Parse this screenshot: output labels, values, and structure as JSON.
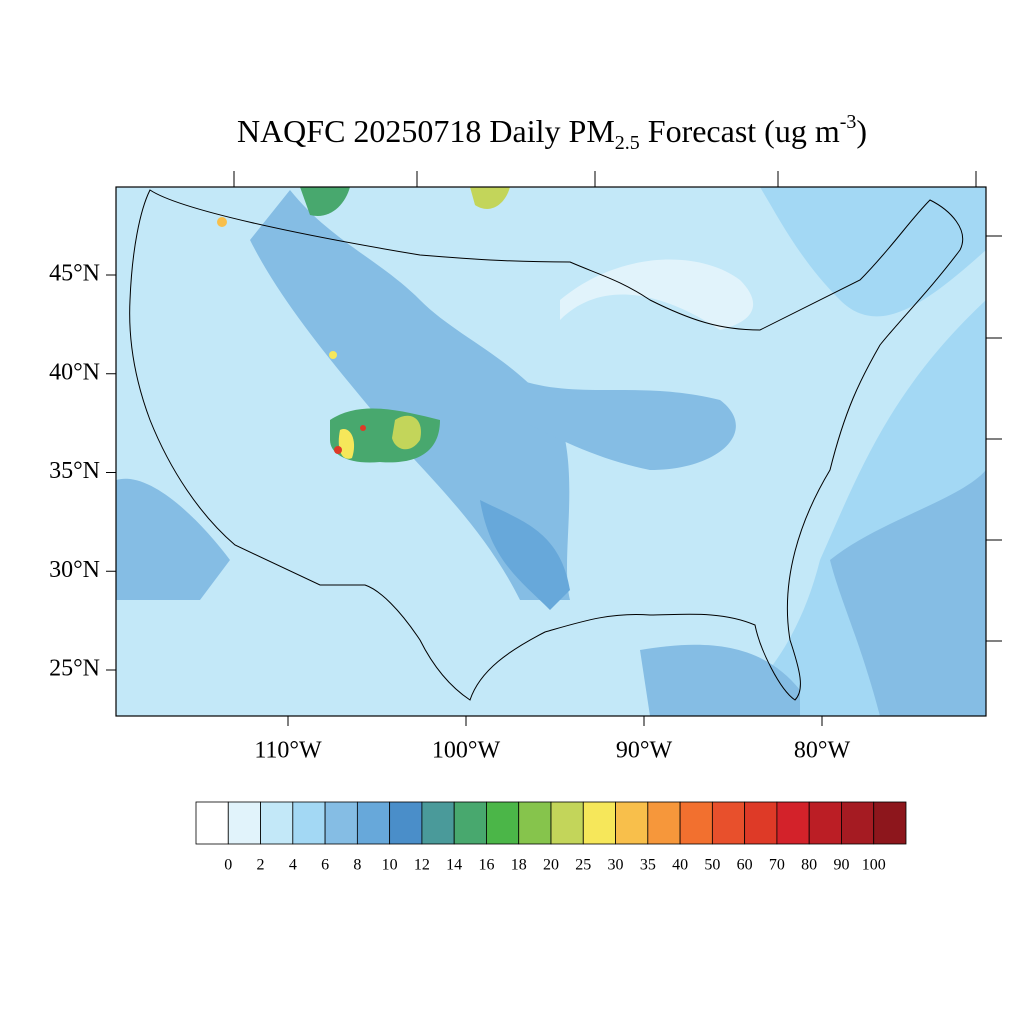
{
  "title": {
    "main": "NAQFC 20250718 Daily PM",
    "subscript": "2.5",
    "middle": " Forecast (ug m",
    "superscript": "-3",
    "end": ")"
  },
  "map": {
    "lat_ticks": [
      {
        "value": 45,
        "label": "45°N"
      },
      {
        "value": 40,
        "label": "40°N"
      },
      {
        "value": 35,
        "label": "35°N"
      },
      {
        "value": 30,
        "label": "30°N"
      },
      {
        "value": 25,
        "label": "25°N"
      }
    ],
    "lon_ticks": [
      {
        "value": -110,
        "label": "110°W"
      },
      {
        "value": -100,
        "label": "100°W"
      },
      {
        "value": -90,
        "label": "90°W"
      },
      {
        "value": -80,
        "label": "80°W"
      }
    ]
  },
  "colorbar": {
    "levels": [
      0,
      2,
      4,
      6,
      8,
      10,
      12,
      14,
      16,
      18,
      20,
      25,
      30,
      35,
      40,
      50,
      60,
      70,
      80,
      90,
      100
    ],
    "colors": [
      "#ffffff",
      "#e1f3fb",
      "#c3e8f8",
      "#a3d8f4",
      "#85bde4",
      "#67a8da",
      "#4a8ec9",
      "#4a9a9a",
      "#48a86e",
      "#4bb648",
      "#86c44c",
      "#c3d55a",
      "#f6e75a",
      "#f8bf4b",
      "#f6973b",
      "#f2702f",
      "#e8502c",
      "#de3a27",
      "#d3222a",
      "#bb1e25",
      "#a51b22",
      "#8d161c"
    ]
  }
}
